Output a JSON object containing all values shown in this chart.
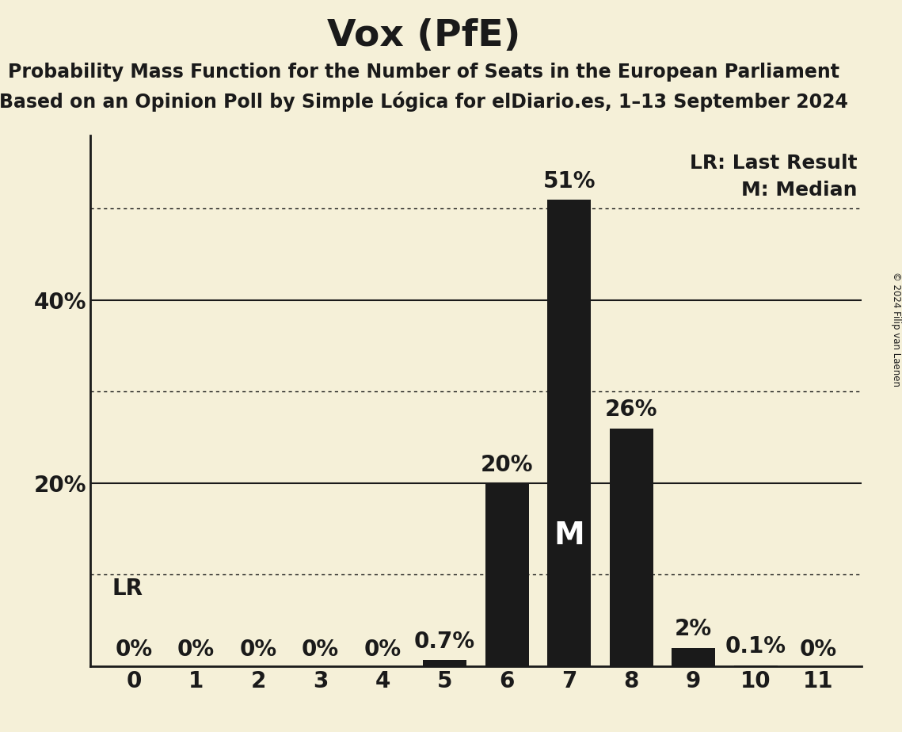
{
  "title": "Vox (PfE)",
  "subtitle1": "Probability Mass Function for the Number of Seats in the European Parliament",
  "subtitle2": "Based on an Opinion Poll by Simple Lógica for elDiario.es, 1–13 September 2024",
  "copyright": "© 2024 Filip van Laenen",
  "categories": [
    0,
    1,
    2,
    3,
    4,
    5,
    6,
    7,
    8,
    9,
    10,
    11
  ],
  "values": [
    0.0,
    0.0,
    0.0,
    0.0,
    0.0,
    0.7,
    20.0,
    51.0,
    26.0,
    2.0,
    0.1,
    0.0
  ],
  "bar_color": "#1a1a1a",
  "bg_color": "#f5f0d8",
  "label_color": "#1a1a1a",
  "median_seat": 7,
  "lr_seat": 0,
  "solid_lines": [
    20.0,
    40.0
  ],
  "dotted_lines": [
    10.0,
    30.0,
    50.0
  ],
  "ytick_labels_solid": [
    20,
    40
  ],
  "ylim": [
    0,
    58
  ],
  "bar_labels": [
    "0%",
    "0%",
    "0%",
    "0%",
    "0%",
    "0.7%",
    "20%",
    "51%",
    "26%",
    "2%",
    "0.1%",
    "0%"
  ],
  "title_fontsize": 34,
  "subtitle_fontsize": 17,
  "tick_fontsize": 20,
  "bar_label_fontsize": 20,
  "legend_fontsize": 18,
  "median_label_fontsize": 28
}
